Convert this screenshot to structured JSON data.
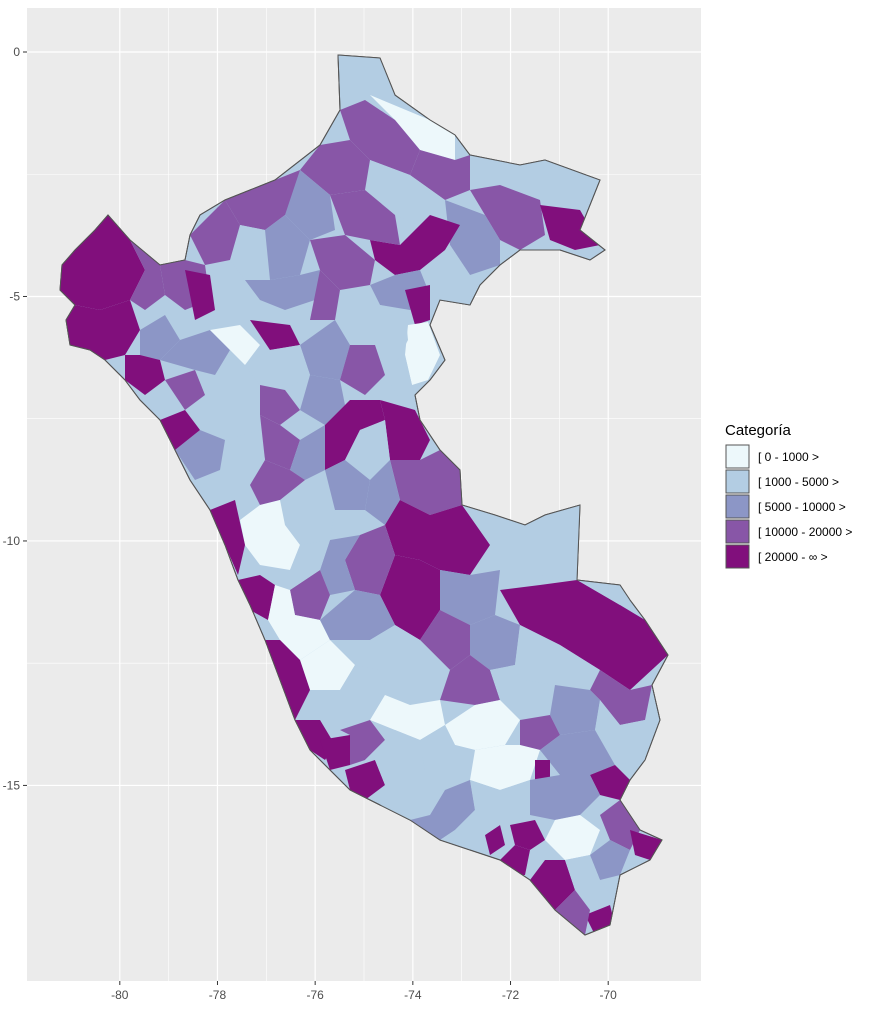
{
  "map": {
    "x_axis": {
      "ticks": [
        -80,
        -78,
        -76,
        -74,
        -72,
        -70
      ],
      "tick_labels": [
        "-80",
        "-78",
        "-76",
        "-74",
        "-72",
        "-70"
      ],
      "range": [
        -81.9,
        -68.1
      ]
    },
    "y_axis": {
      "ticks": [
        0,
        -5,
        -10,
        -15
      ],
      "tick_labels": [
        "0",
        "-5",
        "-10",
        "-15"
      ],
      "range": [
        -19.0,
        0.9
      ]
    },
    "panel_background": "#ebebeb",
    "grid_color": "#ffffff",
    "region_border_color": "#555555",
    "legend": {
      "title": "Categoría",
      "placement": "right",
      "items": [
        {
          "label": "[ 0 - 1000 >",
          "color": "#edf8fb"
        },
        {
          "label": "[ 1000 - 5000 >",
          "color": "#b3cde3"
        },
        {
          "label": "[ 5000 - 10000 >",
          "color": "#8c96c6"
        },
        {
          "label": "[ 10000 - 20000 >",
          "color": "#8856a7"
        },
        {
          "label": "[ 20000 - ∞ >",
          "color": "#810f7c"
        }
      ]
    }
  }
}
